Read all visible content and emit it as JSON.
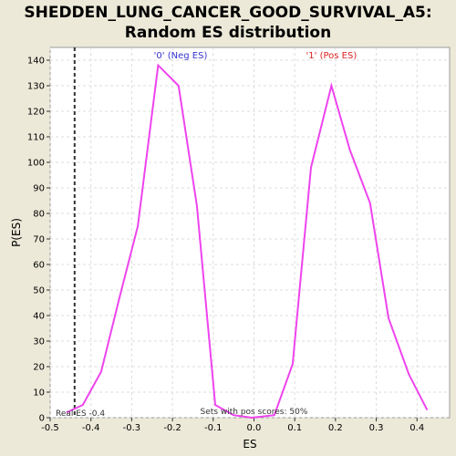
{
  "chart_data": {
    "type": "line",
    "title_line1": "SHEDDEN_LUNG_CANCER_GOOD_SURVIVAL_A5:",
    "title_line2": "Random ES distribution",
    "xlabel": "ES",
    "ylabel": "P(ES)",
    "xlim": [
      -0.5,
      0.48
    ],
    "ylim": [
      0,
      145
    ],
    "xticks": [
      -0.5,
      -0.4,
      -0.3,
      -0.2,
      -0.1,
      0.0,
      0.1,
      0.2,
      0.3,
      0.4
    ],
    "xtick_labels": [
      "-0.5",
      "-0.4",
      "-0.3",
      "-0.2",
      "-0.1",
      "0.0",
      "0.1",
      "0.2",
      "0.3",
      "0.4"
    ],
    "yticks": [
      0,
      10,
      20,
      30,
      40,
      50,
      60,
      70,
      80,
      90,
      100,
      110,
      120,
      130,
      140
    ],
    "grid": true,
    "series": [
      {
        "color": "#EE44EE",
        "x": [
          -0.46,
          -0.42,
          -0.375,
          -0.33,
          -0.285,
          -0.235,
          -0.185,
          -0.14,
          -0.095,
          -0.05,
          -0.005,
          0.05,
          0.095,
          0.14,
          0.19,
          0.235,
          0.285,
          0.33,
          0.38,
          0.425
        ],
        "y": [
          2,
          5,
          18,
          47,
          75,
          138,
          130,
          83,
          5,
          1,
          0,
          1,
          21,
          98,
          130,
          105,
          84,
          39,
          17,
          3
        ]
      }
    ],
    "real_es": -0.44,
    "real_es_label": "Real ES -0.4",
    "annotation_neg": "'0' (Neg ES)",
    "annotation_pos": "'1' (Pos ES)",
    "annotation_neg_color": "#3333CC",
    "annotation_pos_color": "#DD2222",
    "sets_label": "Sets with pos scores: 50%"
  }
}
